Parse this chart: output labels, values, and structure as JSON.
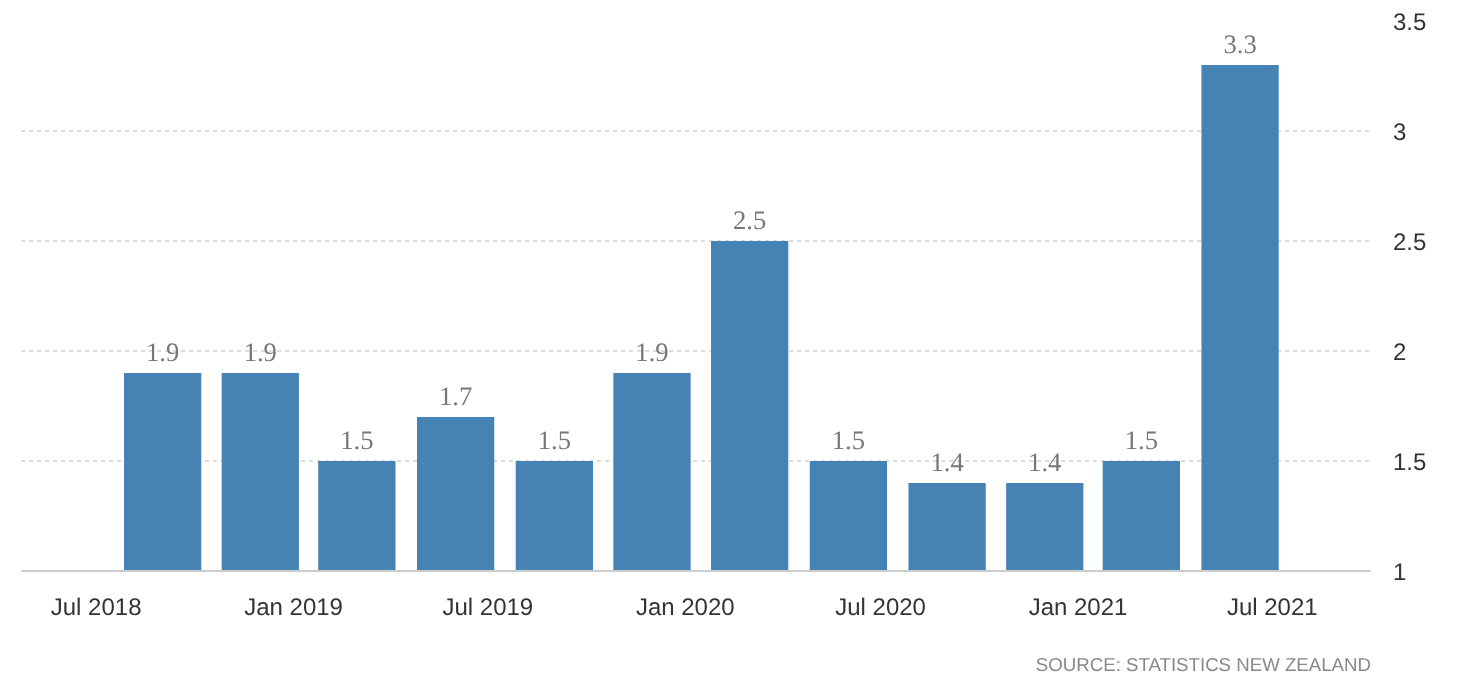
{
  "chart_data": {
    "type": "bar",
    "x": [
      "2018-09",
      "2018-12",
      "2019-03",
      "2019-06",
      "2019-09",
      "2019-12",
      "2020-03",
      "2020-06",
      "2020-09",
      "2020-12",
      "2021-03",
      "2021-06"
    ],
    "values": [
      1.9,
      1.9,
      1.5,
      1.7,
      1.5,
      1.9,
      2.5,
      1.5,
      1.4,
      1.4,
      1.5,
      3.3
    ],
    "color": "#4682b4",
    "data_labels": true,
    "xlim": [
      "2018-04-22",
      "2021-10-01"
    ],
    "xticks": [
      {
        "value": "2018-07",
        "label": "Jul 2018"
      },
      {
        "value": "2019-01",
        "label": "Jan 2019"
      },
      {
        "value": "2019-07",
        "label": "Jul 2019"
      },
      {
        "value": "2020-01",
        "label": "Jan 2020"
      },
      {
        "value": "2020-07",
        "label": "Jul 2020"
      },
      {
        "value": "2021-01",
        "label": "Jan 2021"
      },
      {
        "value": "2021-07",
        "label": "Jul 2021"
      }
    ],
    "ylim": [
      1,
      3.5
    ],
    "yticks": [
      1,
      1.5,
      2,
      2.5,
      3,
      3.5
    ],
    "grid": "y",
    "annotations": [
      "SOURCE: STATISTICS NEW ZEALAND"
    ]
  }
}
